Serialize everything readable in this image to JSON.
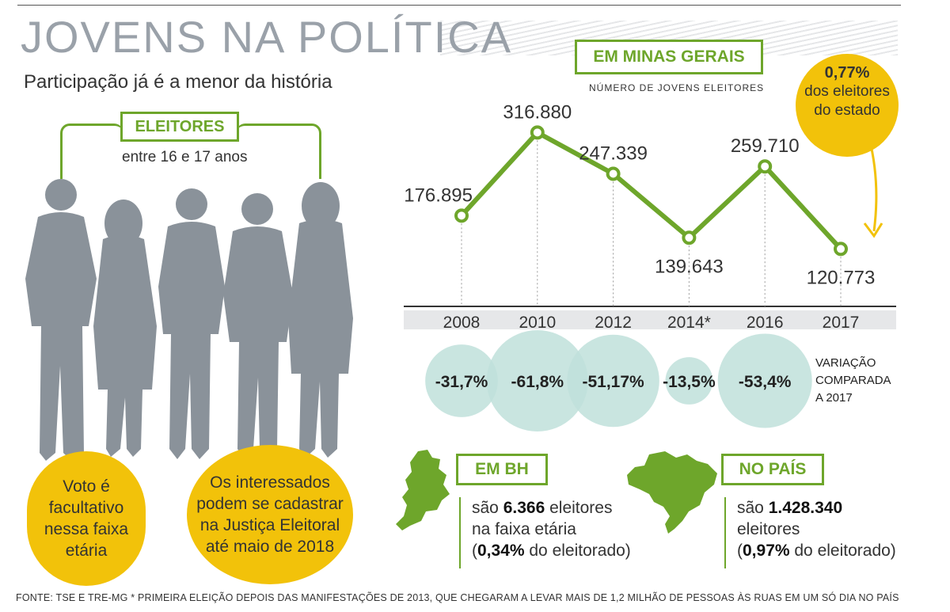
{
  "title": "JOVENS NA POLÍTICA",
  "subtitle": "Participação já é a menor da história",
  "left_panel": {
    "label": "ELEITORES",
    "age_range": "entre 16 e 17 anos",
    "note_a": "Voto é facultativo nessa faixa etária",
    "note_b": "Os interessados podem se cadastrar na Justiça Eleitoral até maio de 2018"
  },
  "right_panel": {
    "label": "EM MINAS GERAIS",
    "sublabel": "NÚMERO DE JOVENS ELEITORES",
    "share_pct": "0,77%",
    "share_text": "dos eleitores do estado",
    "variation_label": [
      "VARIAÇÃO",
      "COMPARADA",
      "A 2017"
    ]
  },
  "chart_data": {
    "type": "line",
    "title": "EM MINAS GERAIS",
    "ylabel": "NÚMERO DE JOVENS ELEITORES",
    "categories": [
      "2008",
      "2010",
      "2012",
      "2014*",
      "2016",
      "2017"
    ],
    "values": [
      176895,
      316880,
      247339,
      139643,
      259710,
      120773
    ],
    "value_labels": [
      "176.895",
      "316.880",
      "247.339",
      "139.643",
      "259.710",
      "120.773"
    ],
    "variation": [
      "-31,7%",
      "-61,8%",
      "-51,17%",
      "-13,5%",
      "-53,4%"
    ],
    "variation_values": [
      -31.7,
      -61.8,
      -51.17,
      -13.5,
      -53.4
    ],
    "colors": {
      "line": "#6ea62b",
      "bubble": "#bfe0db",
      "overlap": "#93cbc2"
    }
  },
  "bh": {
    "label": "EM BH",
    "line1_pre": "são ",
    "line1_bold": "6.366",
    "line1_post": " eleitores",
    "line2": "na faixa etária",
    "line3_pre": "(",
    "line3_bold": "0,34%",
    "line3_post": " do eleitorado)"
  },
  "pais": {
    "label": "NO PAÍS",
    "line1_pre": "são ",
    "line1_bold": "1.428.340",
    "line2": "eleitores",
    "line3_pre": "(",
    "line3_bold": "0,97%",
    "line3_post": " do eleitorado)"
  },
  "footer": "FONTE: TSE E TRE-MG   * PRIMEIRA ELEIÇÃO DEPOIS DAS MANIFESTAÇÕES DE 2013, QUE CHEGARAM A LEVAR MAIS DE 1,2 MILHÃO DE PESSOAS ÀS RUAS EM UM SÓ DIA NO PAÍS"
}
